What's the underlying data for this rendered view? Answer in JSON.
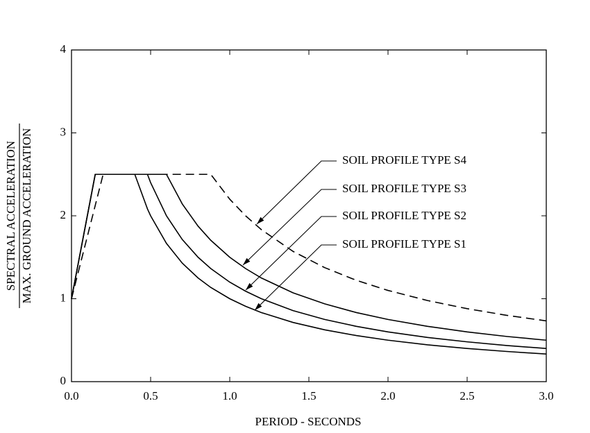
{
  "chart_data": {
    "type": "line",
    "xlabel": "PERIOD - SECONDS",
    "ylabel": [
      "SPECTRAL ACCELERATION",
      "MAX. GROUND ACCELERATION"
    ],
    "x": [
      0,
      0.15,
      0.2,
      0.4,
      0.48,
      0.5,
      0.6,
      0.7,
      0.8,
      0.88,
      1.0,
      1.1,
      1.2,
      1.4,
      1.6,
      1.8,
      2.0,
      2.25,
      2.5,
      2.75,
      3.0
    ],
    "series": [
      {
        "name": "SOIL PROFILE TYPE S4",
        "color": "#000000",
        "dashed": true,
        "values": [
          1,
          2.125,
          2.5,
          2.5,
          2.5,
          2.5,
          2.5,
          2.5,
          2.5,
          2.5,
          2.2,
          2.0,
          1.833,
          1.571,
          1.375,
          1.222,
          1.1,
          0.978,
          0.88,
          0.8,
          0.733
        ]
      },
      {
        "name": "SOIL PROFILE TYPE S3",
        "color": "#000000",
        "dashed": false,
        "values": [
          1,
          2.5,
          2.5,
          2.5,
          2.5,
          2.5,
          2.5,
          2.143,
          1.875,
          1.705,
          1.5,
          1.364,
          1.25,
          1.071,
          0.938,
          0.833,
          0.75,
          0.667,
          0.6,
          0.545,
          0.5
        ]
      },
      {
        "name": "SOIL PROFILE TYPE S2",
        "color": "#000000",
        "dashed": false,
        "values": [
          1,
          2.5,
          2.5,
          2.5,
          2.5,
          2.4,
          2.0,
          1.714,
          1.5,
          1.364,
          1.2,
          1.091,
          1.0,
          0.857,
          0.75,
          0.667,
          0.6,
          0.533,
          0.48,
          0.436,
          0.4
        ]
      },
      {
        "name": "SOIL PROFILE TYPE S1",
        "color": "#000000",
        "dashed": false,
        "values": [
          1,
          2.5,
          2.5,
          2.5,
          2.083,
          2.0,
          1.667,
          1.429,
          1.25,
          1.136,
          1.0,
          0.909,
          0.833,
          0.714,
          0.625,
          0.556,
          0.5,
          0.444,
          0.4,
          0.364,
          0.333
        ]
      }
    ],
    "xlim": [
      0,
      3
    ],
    "xticks": [
      {
        "value": 0,
        "label": "0.0"
      },
      {
        "value": 0.5,
        "label": "0.5"
      },
      {
        "value": 1,
        "label": "1.0"
      },
      {
        "value": 1.5,
        "label": "1.5"
      },
      {
        "value": 2,
        "label": "2.0"
      },
      {
        "value": 2.5,
        "label": "2.5"
      },
      {
        "value": 3,
        "label": "3.0"
      }
    ],
    "ylim": [
      0,
      4
    ],
    "yticks": [
      0,
      1,
      2,
      3,
      4
    ],
    "grid": false
  }
}
